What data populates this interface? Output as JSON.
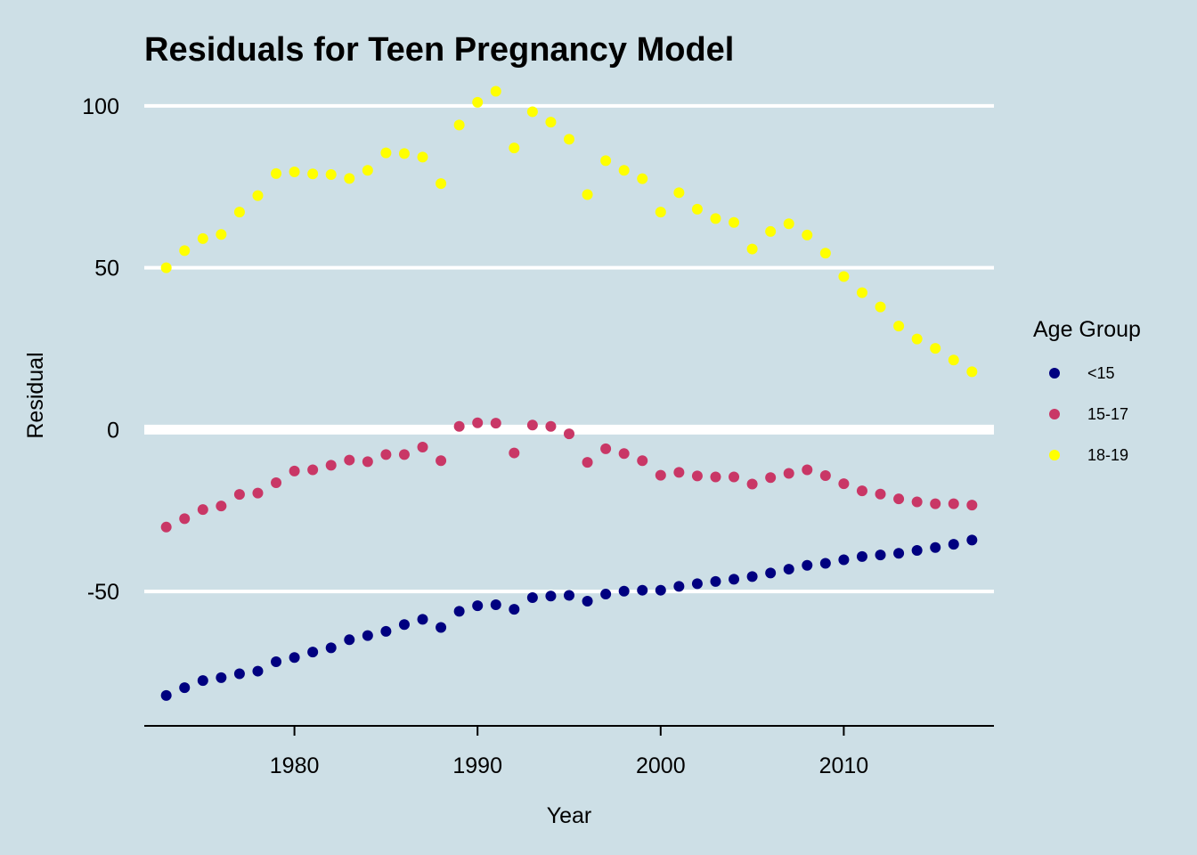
{
  "chart_data": {
    "type": "scatter",
    "title": "Residuals for Teen Pregnancy Model",
    "xlabel": "Year",
    "ylabel": "Residual",
    "xlim": [
      1971.8,
      2018.2
    ],
    "ylim": [
      -91.5,
      108.5
    ],
    "x_ticks": [
      1980,
      1990,
      2000,
      2010
    ],
    "y_ticks": [
      -50,
      0,
      50,
      100
    ],
    "x_tick_labels": [
      "1980",
      "1990",
      "2000",
      "2010"
    ],
    "y_tick_labels": [
      "-50",
      "0",
      "50",
      "100"
    ],
    "grid": "horizontal major lines only (white), thicker line at 0",
    "legend": {
      "title": "Age Group",
      "position": "right"
    },
    "x": [
      1973,
      1974,
      1975,
      1976,
      1977,
      1978,
      1979,
      1980,
      1981,
      1982,
      1983,
      1984,
      1985,
      1986,
      1987,
      1988,
      1989,
      1990,
      1991,
      1992,
      1993,
      1994,
      1995,
      1996,
      1997,
      1998,
      1999,
      2000,
      2001,
      2002,
      2003,
      2004,
      2005,
      2006,
      2007,
      2008,
      2009,
      2010,
      2011,
      2012,
      2013,
      2014,
      2015,
      2016,
      2017
    ],
    "series": [
      {
        "name": "<15",
        "color": "#000080",
        "values": [
          -82.1,
          -79.7,
          -77.5,
          -76.6,
          -75.4,
          -74.6,
          -71.7,
          -70.4,
          -68.7,
          -67.4,
          -64.9,
          -63.6,
          -62.3,
          -60.2,
          -58.6,
          -61.1,
          -56.1,
          -54.4,
          -54.1,
          -55.5,
          -51.9,
          -51.4,
          -51.2,
          -53.0,
          -50.8,
          -49.9,
          -49.6,
          -49.6,
          -48.4,
          -47.6,
          -46.9,
          -46.2,
          -45.4,
          -44.3,
          -43.1,
          -41.9,
          -41.3,
          -40.2,
          -39.2,
          -38.7,
          -38.2,
          -37.3,
          -36.4,
          -35.4,
          -34.1
        ]
      },
      {
        "name": "15-17",
        "color": "#c93766",
        "values": [
          -30.1,
          -27.5,
          -24.7,
          -23.6,
          -20.0,
          -19.6,
          -16.4,
          -12.8,
          -12.4,
          -11.0,
          -9.4,
          -9.9,
          -7.7,
          -7.7,
          -5.4,
          -9.6,
          1.0,
          2.1,
          2.0,
          -7.2,
          1.4,
          1.0,
          -1.3,
          -10.1,
          -5.9,
          -7.4,
          -9.6,
          -14.1,
          -13.2,
          -14.3,
          -14.6,
          -14.6,
          -16.8,
          -14.8,
          -13.5,
          -12.4,
          -14.2,
          -16.7,
          -18.9,
          -19.9,
          -21.4,
          -22.3,
          -22.9,
          -22.9,
          -23.3
        ]
      },
      {
        "name": "18-19",
        "color": "#ffff00",
        "values": [
          50.0,
          55.3,
          59.0,
          60.3,
          67.2,
          72.3,
          79.1,
          79.6,
          79.0,
          78.8,
          77.6,
          80.1,
          85.5,
          85.3,
          84.2,
          76.0,
          94.1,
          101.1,
          104.5,
          87.0,
          98.2,
          95.0,
          89.7,
          72.6,
          83.1,
          80.1,
          77.5,
          67.2,
          73.2,
          68.1,
          65.2,
          64.0,
          55.8,
          61.2,
          63.6,
          60.1,
          54.5,
          47.3,
          42.3,
          37.9,
          32.0,
          28.0,
          25.1,
          21.5,
          17.9
        ]
      }
    ]
  }
}
